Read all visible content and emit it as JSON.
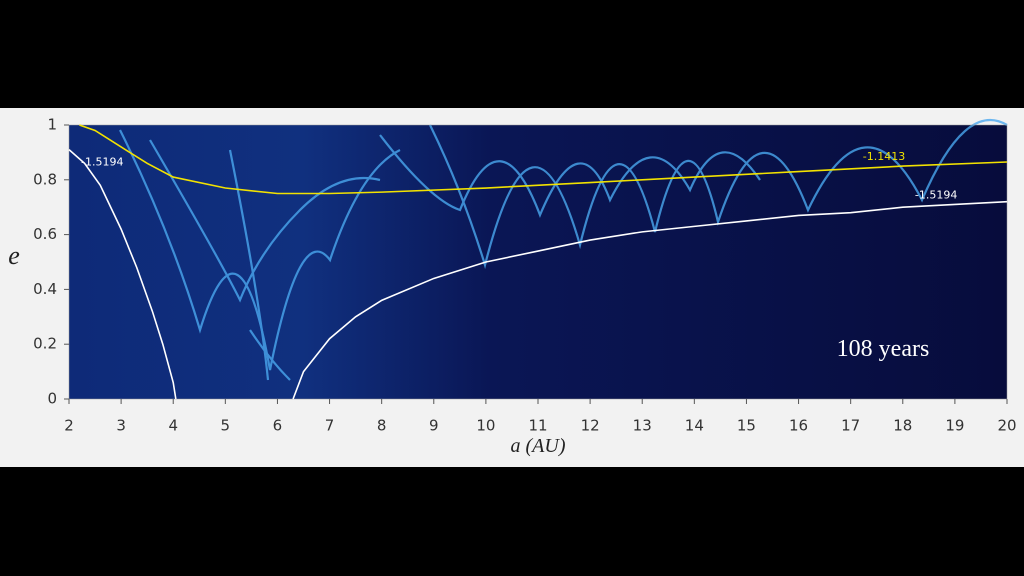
{
  "chart_data": {
    "type": "contour",
    "xlabel": "a (AU)",
    "ylabel": "e",
    "annotation": "108 years",
    "xlim": [
      2,
      20
    ],
    "xticks": [
      2,
      3,
      4,
      5,
      6,
      7,
      8,
      9,
      10,
      11,
      12,
      13,
      14,
      15,
      16,
      17,
      18,
      19,
      20
    ],
    "ylim": [
      0,
      1
    ],
    "yticks": [
      0,
      0.2,
      0.4,
      0.6,
      0.8,
      1
    ],
    "series": [
      {
        "name": "-1.5194",
        "color": "#ffffff",
        "x": [
          2,
          2.3,
          2.6,
          3,
          3.3,
          3.6,
          3.8,
          4,
          4.05
        ],
        "values": [
          0.91,
          0.86,
          0.78,
          0.62,
          0.48,
          0.32,
          0.2,
          0.06,
          0
        ]
      },
      {
        "name": "-1.5194",
        "color": "#ffffff",
        "x": [
          6.3,
          6.5,
          7,
          7.5,
          8,
          9,
          10,
          11,
          12,
          13,
          14,
          15,
          16,
          17,
          18,
          19,
          20
        ],
        "values": [
          0,
          0.1,
          0.22,
          0.3,
          0.36,
          0.44,
          0.5,
          0.54,
          0.58,
          0.61,
          0.63,
          0.65,
          0.67,
          0.68,
          0.7,
          0.71,
          0.72
        ]
      },
      {
        "name": "-1.1413",
        "color": "#f2e200",
        "x": [
          2.2,
          2.5,
          3,
          3.5,
          4,
          5,
          6,
          7,
          8,
          10,
          12,
          14,
          16,
          18,
          20
        ],
        "values": [
          1,
          0.98,
          0.92,
          0.86,
          0.81,
          0.77,
          0.75,
          0.75,
          0.755,
          0.77,
          0.79,
          0.81,
          0.83,
          0.85,
          0.865
        ]
      }
    ]
  }
}
